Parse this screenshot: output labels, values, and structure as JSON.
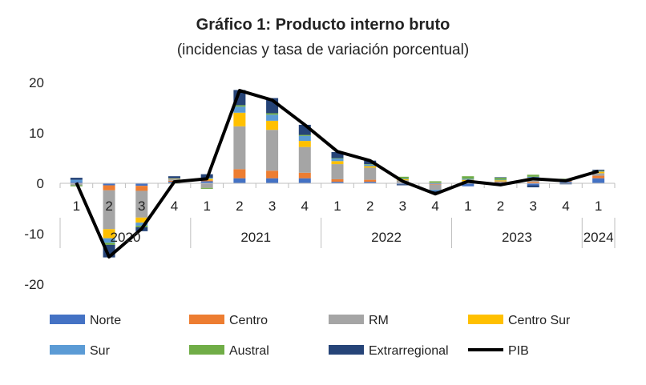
{
  "chart_data": {
    "type": "bar",
    "title": "Gráfico 1: Producto interno bruto",
    "subtitle": "(incidencias y tasa de variación porcentual)",
    "xlabel": "",
    "ylabel": "",
    "ylim": [
      -20,
      20
    ],
    "yticks": [
      "20",
      "10",
      "0",
      "-10",
      "-20"
    ],
    "yticks_values": [
      20,
      10,
      0,
      -10,
      -20
    ],
    "categories": [
      "1",
      "2",
      "3",
      "4",
      "1",
      "2",
      "3",
      "4",
      "1",
      "2",
      "3",
      "4",
      "1",
      "2",
      "3",
      "4",
      "1"
    ],
    "year_groups": [
      {
        "label": "2020",
        "start": 0,
        "end": 3
      },
      {
        "label": "2021",
        "start": 4,
        "end": 7
      },
      {
        "label": "2022",
        "start": 8,
        "end": 11
      },
      {
        "label": "2023",
        "start": 12,
        "end": 15
      },
      {
        "label": "2024",
        "start": 16,
        "end": 16
      }
    ],
    "stacked": true,
    "grid": false,
    "legend_position": "bottom",
    "series": [
      {
        "name": "Norte",
        "color": "#4472C4",
        "type": "bar",
        "values": [
          0.3,
          -0.4,
          -0.5,
          0.3,
          0.4,
          1.0,
          1.0,
          1.0,
          0.3,
          0.3,
          -0.2,
          -0.2,
          -0.6,
          0.2,
          -0.4,
          0.3,
          1.0
        ]
      },
      {
        "name": "Centro",
        "color": "#ED7D31",
        "type": "bar",
        "values": [
          0.0,
          -1.0,
          -1.0,
          0.2,
          0.2,
          1.8,
          1.5,
          1.1,
          0.5,
          0.4,
          0.1,
          -0.1,
          0.1,
          0.1,
          0.3,
          0.1,
          0.5
        ]
      },
      {
        "name": "RM",
        "color": "#A5A5A5",
        "type": "bar",
        "values": [
          -0.4,
          -7.7,
          -5.3,
          0.3,
          -0.9,
          8.5,
          8.1,
          5.1,
          3.0,
          2.4,
          0.5,
          -1.0,
          0.3,
          0.1,
          0.6,
          0.1,
          0.5
        ]
      },
      {
        "name": "Centro Sur",
        "color": "#FFC000",
        "type": "bar",
        "values": [
          0.0,
          -1.8,
          -1.0,
          0.1,
          0.3,
          2.7,
          1.8,
          1.2,
          0.6,
          0.3,
          0.2,
          0.1,
          0.3,
          0.2,
          0.2,
          0.1,
          0.3
        ]
      },
      {
        "name": "Sur",
        "color": "#5B9BD5",
        "type": "bar",
        "values": [
          0.4,
          -0.9,
          -0.6,
          0.1,
          0.2,
          1.2,
          1.2,
          1.0,
          0.5,
          0.3,
          0.1,
          -0.2,
          0.2,
          0.1,
          0.2,
          0.2,
          0.1
        ]
      },
      {
        "name": "Austral",
        "color": "#70AD47",
        "type": "bar",
        "values": [
          -0.2,
          -0.4,
          -0.3,
          -0.1,
          -0.2,
          0.3,
          0.3,
          0.2,
          0.1,
          0.1,
          0.4,
          0.3,
          0.5,
          0.4,
          0.4,
          0.1,
          0.1
        ]
      },
      {
        "name": "Extrarregional",
        "color": "#264478",
        "type": "bar",
        "values": [
          0.4,
          -2.5,
          -0.8,
          0.4,
          0.7,
          3.0,
          3.0,
          2.0,
          1.2,
          0.7,
          -0.2,
          -0.3,
          0.0,
          0.1,
          -0.4,
          -0.2,
          0.2
        ]
      },
      {
        "name": "PIB",
        "color": "#000000",
        "type": "line",
        "values": [
          0.1,
          -14.6,
          -9.0,
          0.3,
          0.9,
          18.4,
          16.5,
          11.6,
          6.3,
          4.5,
          0.4,
          -2.1,
          0.4,
          -0.3,
          0.9,
          0.5,
          2.4
        ]
      }
    ]
  }
}
